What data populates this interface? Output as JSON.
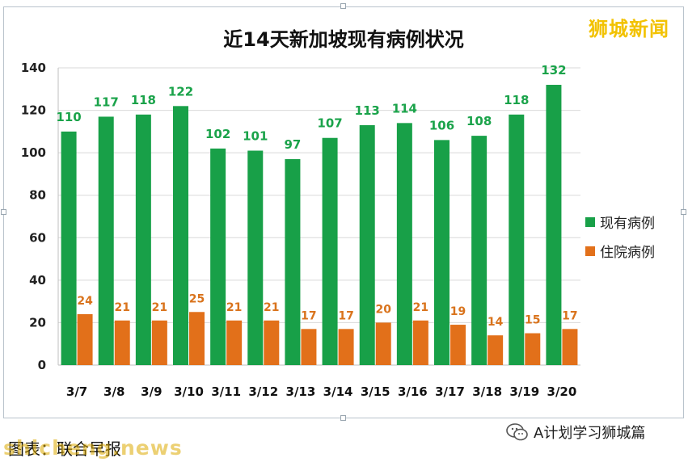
{
  "brand": "狮城新闻",
  "source_note": "图表：联合早报",
  "wechat_account": "A计划学习狮城篇",
  "watermark": "shicheng.news",
  "colors": {
    "series1": "#18a048",
    "series2": "#e2701a",
    "grid": "#d9d9d9"
  },
  "chart_data": {
    "type": "bar",
    "title": "近14天新加坡现有病例状况",
    "xlabel": "",
    "ylabel": "",
    "categories": [
      "3/7",
      "3/8",
      "3/9",
      "3/10",
      "3/11",
      "3/12",
      "3/13",
      "3/14",
      "3/15",
      "3/16",
      "3/17",
      "3/18",
      "3/19",
      "3/20"
    ],
    "series": [
      {
        "name": "现有病例",
        "values": [
          110,
          117,
          118,
          122,
          102,
          101,
          97,
          107,
          113,
          114,
          106,
          108,
          118,
          132
        ]
      },
      {
        "name": "住院病例",
        "values": [
          24,
          21,
          21,
          25,
          21,
          21,
          17,
          17,
          20,
          21,
          19,
          14,
          15,
          17
        ]
      }
    ],
    "ylim": [
      0,
      140
    ],
    "yticks": [
      0,
      20,
      40,
      60,
      80,
      100,
      120,
      140
    ],
    "grid": true,
    "legend_position": "right",
    "data_labels": true
  }
}
